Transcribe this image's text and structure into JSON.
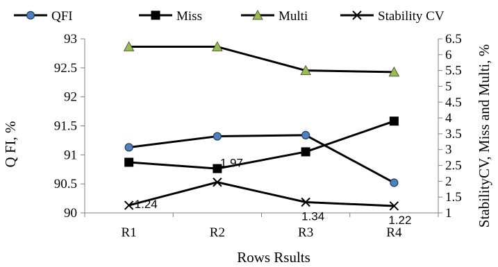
{
  "chart_data": {
    "type": "line",
    "categories": [
      "R1",
      "R2",
      "R3",
      "R4"
    ],
    "xlabel": "Rows Rsults",
    "ylabel": "Q FI, %",
    "y2label": "StabilityCV, Miss and Multi, %",
    "ylim": [
      90,
      93
    ],
    "y2lim": [
      1,
      6.5
    ],
    "y_ticks": [
      "90",
      "90.5",
      "91",
      "91.5",
      "92",
      "92.5",
      "93"
    ],
    "y2_ticks": [
      "1",
      "1.5",
      "2",
      "2.5",
      "3",
      "3.5",
      "4",
      "4.5",
      "5",
      "5.5",
      "6",
      "6.5"
    ],
    "grid": false,
    "legend_position": "top",
    "series": [
      {
        "name": "QFI",
        "axis": "left",
        "marker": "circle",
        "color": "#000000",
        "marker_fill": "#4f81bd",
        "values": [
          91.13,
          91.32,
          91.34,
          90.52
        ]
      },
      {
        "name": "Miss",
        "axis": "right",
        "marker": "square",
        "color": "#000000",
        "marker_fill": "#000000",
        "values": [
          2.6,
          2.4,
          2.93,
          3.9
        ]
      },
      {
        "name": "Multi",
        "axis": "right",
        "marker": "triangle",
        "color": "#000000",
        "marker_fill": "#9bbb59",
        "values": [
          6.25,
          6.25,
          5.5,
          5.45
        ]
      },
      {
        "name": "Stability CV",
        "axis": "right",
        "marker": "x",
        "color": "#000000",
        "marker_fill": "#000000",
        "values": [
          1.24,
          1.97,
          1.34,
          1.22
        ],
        "data_labels": [
          "1.24",
          "1.97",
          "1.34",
          "1.22"
        ]
      }
    ]
  }
}
